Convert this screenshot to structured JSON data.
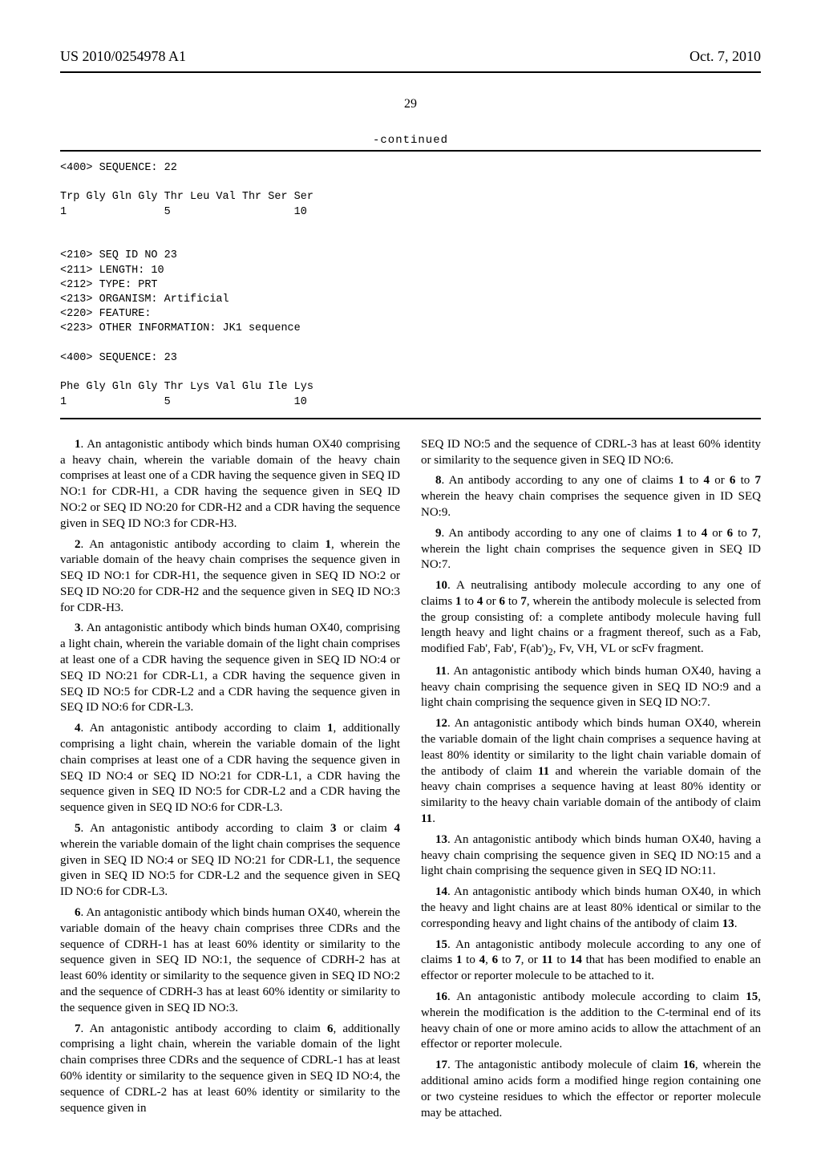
{
  "header": {
    "pub_number": "US 2010/0254978 A1",
    "date": "Oct. 7, 2010"
  },
  "page_number": "29",
  "continued_label": "-continued",
  "sequence_block": "<400> SEQUENCE: 22\n\nTrp Gly Gln Gly Thr Leu Val Thr Ser Ser\n1               5                   10\n\n\n<210> SEQ ID NO 23\n<211> LENGTH: 10\n<212> TYPE: PRT\n<213> ORGANISM: Artificial\n<220> FEATURE:\n<223> OTHER INFORMATION: JK1 sequence\n\n<400> SEQUENCE: 23\n\nPhe Gly Gln Gly Thr Lys Val Glu Ile Lys\n1               5                   10",
  "claims": {
    "c1": ". An antagonistic antibody which binds human OX40 comprising a heavy chain, wherein the variable domain of the heavy chain comprises at least one of a CDR having the sequence given in SEQ ID NO:1 for CDR-H1, a CDR having the sequence given in SEQ ID NO:2 or SEQ ID NO:20 for CDR-H2 and a CDR having the sequence given in SEQ ID NO:3 for CDR-H3.",
    "c2a": ". An antagonistic antibody according to claim ",
    "c2b": ", wherein the variable domain of the heavy chain comprises the sequence given in SEQ ID NO:1 for CDR-H1, the sequence given in SEQ ID NO:2 or SEQ ID NO:20 for CDR-H2 and the sequence given in SEQ ID NO:3 for CDR-H3.",
    "c3": ". An antagonistic antibody which binds human OX40, comprising a light chain, wherein the variable domain of the light chain comprises at least one of a CDR having the sequence given in SEQ ID NO:4 or SEQ ID NO:21 for CDR-L1, a CDR having the sequence given in SEQ ID NO:5 for CDR-L2 and a CDR having the sequence given in SEQ ID NO:6 for CDR-L3.",
    "c4a": ". An antagonistic antibody according to claim ",
    "c4b": ", additionally comprising a light chain, wherein the variable domain of the light chain comprises at least one of a CDR having the sequence given in SEQ ID NO:4 or SEQ ID NO:21 for CDR-L1, a CDR having the sequence given in SEQ ID NO:5 for CDR-L2 and a CDR having the sequence given in SEQ ID NO:6 for CDR-L3.",
    "c5a": ". An antagonistic antibody according to claim ",
    "c5b": " or claim ",
    "c5c": " wherein the variable domain of the light chain comprises the sequence given in SEQ ID NO:4 or SEQ ID NO:21 for CDR-L1, the sequence given in SEQ ID NO:5 for CDR-L2 and the sequence given in SEQ ID NO:6 for CDR-L3.",
    "c6": ". An antagonistic antibody which binds human OX40, wherein the variable domain of the heavy chain comprises three CDRs and the sequence of CDRH-1 has at least 60% identity or similarity to the sequence given in SEQ ID NO:1, the sequence of CDRH-2 has at least 60% identity or similarity to the sequence given in SEQ ID NO:2 and the sequence of CDRH-3 has at least 60% identity or similarity to the sequence given in SEQ ID NO:3.",
    "c7a": ". An antagonistic antibody according to claim ",
    "c7b": ", additionally comprising a light chain, wherein the variable domain of the light chain comprises three CDRs and the sequence of CDRL-1 has at least 60% identity or similarity to the sequence given in SEQ ID NO:4, the sequence of CDRL-2 has at least 60% identity or similarity to the sequence given in",
    "c7c": "SEQ ID NO:5 and the sequence of CDRL-3 has at least 60% identity or similarity to the sequence given in SEQ ID NO:6.",
    "c8a": ". An antibody according to any one of claims ",
    "c8b": " to ",
    "c8c": " or ",
    "c8d": " to ",
    "c8e": " wherein the heavy chain comprises the sequence given in ID SEQ NO:9.",
    "c9a": ". An antibody according to any one of claims ",
    "c9b": " to ",
    "c9c": " or ",
    "c9d": " to ",
    "c9e": ", wherein the light chain comprises the sequence given in SEQ ID NO:7.",
    "c10a": ". A neutralising antibody molecule according to any one of claims ",
    "c10b": " to ",
    "c10c": " or ",
    "c10d": " to ",
    "c10e": ", wherein the antibody molecule is selected from the group consisting of: a complete antibody molecule having full length heavy and light chains or a fragment thereof, such as a Fab, modified Fab', Fab', F(ab')",
    "c10f": ", Fv, VH, VL or scFv fragment.",
    "c11": ". An antagonistic antibody which binds human OX40, having a heavy chain comprising the sequence given in SEQ ID NO:9 and a light chain comprising the sequence given in SEQ ID NO:7.",
    "c12a": ". An antagonistic antibody which binds human OX40, wherein the variable domain of the light chain comprises a sequence having at least 80% identity or similarity to the light chain variable domain of the antibody of claim ",
    "c12b": " and wherein the variable domain of the heavy chain comprises a sequence having at least 80% identity or similarity to the heavy chain variable domain of the antibody of claim ",
    "c12c": ".",
    "c13": ". An antagonistic antibody which binds human OX40, having a heavy chain comprising the sequence given in SEQ ID NO:15 and a light chain comprising the sequence given in SEQ ID NO:11.",
    "c14a": ". An antagonistic antibody which binds human OX40, in which the heavy and light chains are at least 80% identical or similar to the corresponding heavy and light chains of the antibody of claim ",
    "c14b": ".",
    "c15a": ". An antagonistic antibody molecule according to any one of claims ",
    "c15b": " to ",
    "c15c": ", ",
    "c15d": " to ",
    "c15e": ", or ",
    "c15f": " to ",
    "c15g": " that has been modified to enable an effector or reporter molecule to be attached to it.",
    "c16a": ". An antagonistic antibody molecule according to claim ",
    "c16b": ", wherein the modification is the addition to the C-terminal end of its heavy chain of one or more amino acids to allow the attachment of an effector or reporter molecule.",
    "c17a": ". The antagonistic antibody molecule of claim ",
    "c17b": ", wherein the additional amino acids form a modified hinge region containing one or two cysteine residues to which the effector or reporter molecule may be attached."
  },
  "nums": {
    "n1": "1",
    "n2": "2",
    "n3": "3",
    "n4": "4",
    "n5": "5",
    "n6": "6",
    "n7": "7",
    "n8": "8",
    "n9": "9",
    "n10": "10",
    "n11": "11",
    "n12": "12",
    "n13": "13",
    "n14": "14",
    "n15": "15",
    "n16": "16",
    "n17": "17",
    "sub2": "2"
  }
}
